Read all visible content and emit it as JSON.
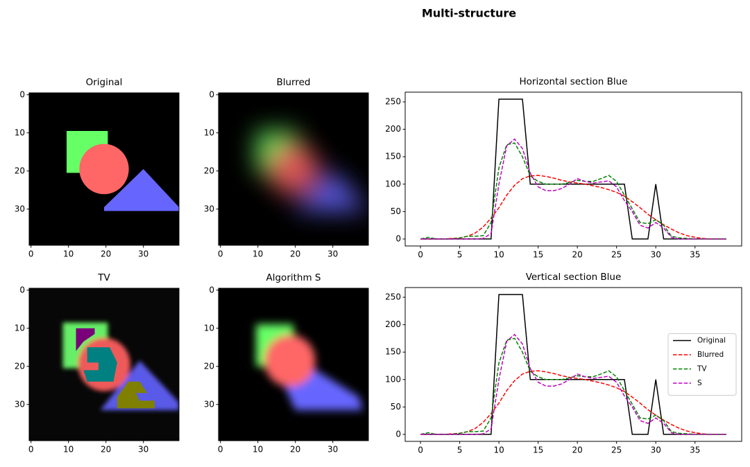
{
  "title": "Multi-structure",
  "chart_data": [
    {
      "type": "image",
      "title": "Original",
      "xlim": [
        -0.5,
        39.5
      ],
      "ylim": [
        39.5,
        -0.5
      ],
      "xticks": [
        0,
        10,
        20,
        30
      ],
      "yticks": [
        0,
        10,
        20,
        30
      ]
    },
    {
      "type": "image",
      "title": "Blurred",
      "xlim": [
        -0.5,
        39.5
      ],
      "ylim": [
        39.5,
        -0.5
      ],
      "xticks": [
        0,
        10,
        20,
        30
      ],
      "yticks": [
        0,
        10,
        20,
        30
      ]
    },
    {
      "type": "line",
      "title": "Horizontal section Blue",
      "x": [
        0,
        1,
        2,
        3,
        4,
        5,
        6,
        7,
        8,
        9,
        10,
        11,
        12,
        13,
        14,
        15,
        16,
        17,
        18,
        19,
        20,
        21,
        22,
        23,
        24,
        25,
        26,
        27,
        28,
        29,
        30,
        31,
        32,
        33,
        34,
        35,
        36,
        37,
        38,
        39
      ],
      "xlim": [
        -1.95,
        40.95
      ],
      "ylim": [
        -12.75,
        267.75
      ],
      "xticks": [
        0,
        5,
        10,
        15,
        20,
        25,
        30,
        35
      ],
      "yticks": [
        0,
        50,
        100,
        150,
        200,
        250
      ],
      "series": [
        {
          "color": "#000000",
          "linestyle": "solid",
          "values": [
            0,
            0,
            0,
            0,
            0,
            0,
            0,
            0,
            0,
            0,
            255,
            255,
            255,
            255,
            100,
            100,
            100,
            100,
            100,
            100,
            100,
            100,
            100,
            100,
            100,
            100,
            100,
            0,
            0,
            0,
            100,
            0,
            0,
            0,
            0,
            0,
            0,
            0,
            0,
            0
          ]
        },
        {
          "color": "#ff0000",
          "linestyle": "dashed",
          "values": [
            0,
            0,
            0,
            0,
            1,
            2,
            5,
            11,
            22,
            38,
            57,
            80,
            98,
            110,
            115,
            116,
            114,
            111,
            107,
            104,
            102,
            100,
            97,
            94,
            90,
            85,
            78,
            68,
            57,
            45,
            35,
            26,
            18,
            11,
            6,
            3,
            1,
            0,
            0,
            0
          ]
        },
        {
          "color": "#008000",
          "linestyle": "dashed",
          "values": [
            0,
            3,
            0,
            0,
            0,
            2,
            5,
            5,
            6,
            30,
            130,
            172,
            175,
            150,
            115,
            105,
            100,
            100,
            100,
            103,
            107,
            105,
            105,
            110,
            116,
            105,
            80,
            55,
            30,
            28,
            35,
            25,
            5,
            2,
            1,
            0,
            0,
            0,
            0,
            0
          ]
        },
        {
          "color": "#c000c0",
          "linestyle": "dashed",
          "values": [
            0,
            0,
            0,
            0,
            0,
            0,
            0,
            0,
            1,
            10,
            100,
            170,
            182,
            165,
            120,
            95,
            88,
            88,
            92,
            100,
            110,
            105,
            102,
            104,
            106,
            95,
            70,
            50,
            25,
            20,
            30,
            20,
            3,
            0,
            0,
            0,
            0,
            0,
            0,
            0
          ]
        }
      ]
    },
    {
      "type": "image",
      "title": "TV",
      "xlim": [
        -0.5,
        39.5
      ],
      "ylim": [
        39.5,
        -0.5
      ],
      "xticks": [
        0,
        10,
        20,
        30
      ],
      "yticks": [
        0,
        10,
        20,
        30
      ]
    },
    {
      "type": "image",
      "title": "Algorithm S",
      "xlim": [
        -0.5,
        39.5
      ],
      "ylim": [
        39.5,
        -0.5
      ],
      "xticks": [
        0,
        10,
        20,
        30
      ],
      "yticks": [
        0,
        10,
        20,
        30
      ]
    },
    {
      "type": "line",
      "title": "Vertical section Blue",
      "x": [
        0,
        1,
        2,
        3,
        4,
        5,
        6,
        7,
        8,
        9,
        10,
        11,
        12,
        13,
        14,
        15,
        16,
        17,
        18,
        19,
        20,
        21,
        22,
        23,
        24,
        25,
        26,
        27,
        28,
        29,
        30,
        31,
        32,
        33,
        34,
        35,
        36,
        37,
        38,
        39
      ],
      "xlim": [
        -1.95,
        40.95
      ],
      "ylim": [
        -12.75,
        267.75
      ],
      "xticks": [
        0,
        5,
        10,
        15,
        20,
        25,
        30,
        35
      ],
      "yticks": [
        0,
        50,
        100,
        150,
        200,
        250
      ],
      "legend": "center right",
      "series": [
        {
          "name": "Original",
          "color": "#000000",
          "linestyle": "solid",
          "values": [
            0,
            0,
            0,
            0,
            0,
            0,
            0,
            0,
            0,
            0,
            255,
            255,
            255,
            255,
            100,
            100,
            100,
            100,
            100,
            100,
            100,
            100,
            100,
            100,
            100,
            100,
            100,
            0,
            0,
            0,
            100,
            0,
            0,
            0,
            0,
            0,
            0,
            0,
            0,
            0
          ]
        },
        {
          "name": "Blurred",
          "color": "#ff0000",
          "linestyle": "dashed",
          "values": [
            0,
            0,
            0,
            0,
            1,
            2,
            5,
            11,
            22,
            38,
            57,
            80,
            98,
            110,
            115,
            116,
            114,
            111,
            107,
            104,
            102,
            100,
            97,
            94,
            90,
            85,
            78,
            68,
            57,
            45,
            35,
            26,
            18,
            11,
            6,
            3,
            1,
            0,
            0,
            0
          ]
        },
        {
          "name": "TV",
          "color": "#008000",
          "linestyle": "dashed",
          "values": [
            0,
            3,
            0,
            0,
            0,
            2,
            5,
            5,
            6,
            30,
            130,
            172,
            175,
            150,
            115,
            105,
            100,
            100,
            100,
            103,
            107,
            105,
            105,
            110,
            116,
            105,
            80,
            55,
            30,
            28,
            35,
            25,
            5,
            2,
            1,
            0,
            0,
            0,
            0,
            0
          ]
        },
        {
          "name": "S",
          "color": "#c000c0",
          "linestyle": "dashed",
          "values": [
            0,
            0,
            0,
            0,
            0,
            0,
            0,
            0,
            1,
            10,
            100,
            170,
            182,
            165,
            120,
            95,
            88,
            88,
            92,
            100,
            110,
            105,
            102,
            104,
            106,
            95,
            70,
            50,
            25,
            20,
            30,
            20,
            3,
            0,
            0,
            0,
            0,
            0,
            0,
            0
          ]
        }
      ]
    }
  ]
}
